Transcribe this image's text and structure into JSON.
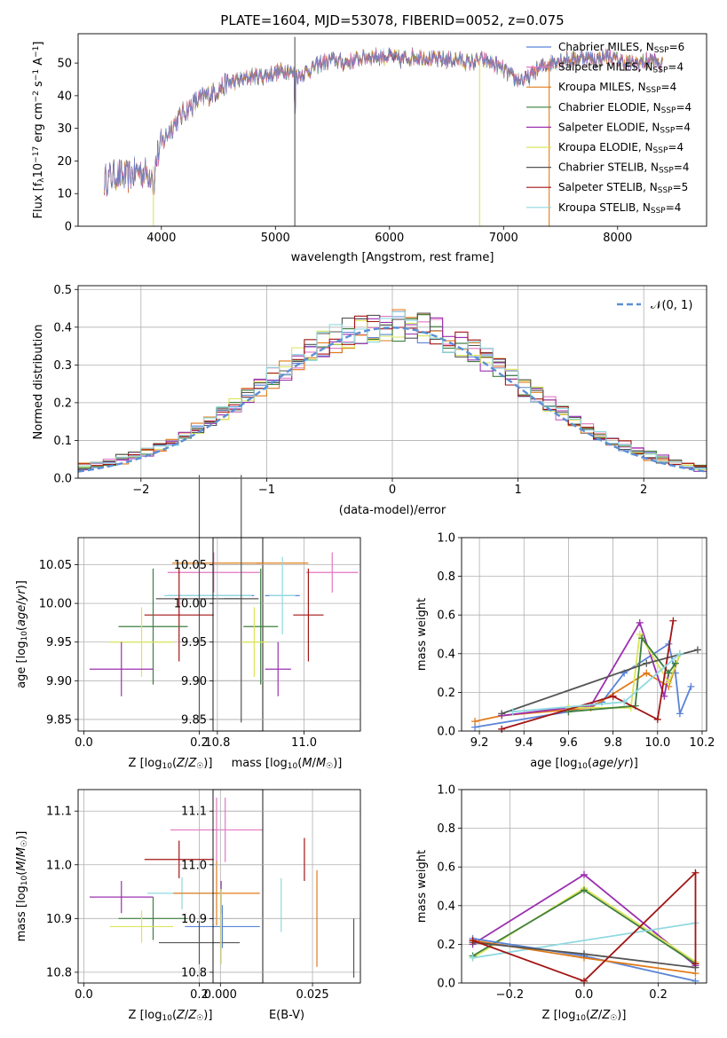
{
  "figure_title": "PLATE=1604, MJD=53078, FIBERID=0052, z=0.075",
  "colors": {
    "Chabrier MILES": "#5b84d6",
    "Salpeter MILES": "#e377c2",
    "Kroupa MILES": "#e07b1a",
    "Chabrier ELODIE": "#3f7f3f",
    "Salpeter ELODIE": "#9b30b0",
    "Kroupa ELODIE": "#dbe55a",
    "Chabrier STELIB": "#555555",
    "Salpeter STELIB": "#a31515",
    "Kroupa STELIB": "#8fd9e0",
    "normal_curve": "#5b8fd6",
    "grid": "#b0b0b0"
  },
  "chart_data": [
    {
      "id": "spectrum",
      "type": "line",
      "title": "PLATE=1604, MJD=53078, FIBERID=0052, z=0.075",
      "xlabel": "wavelength [Angstrom, rest frame]",
      "ylabel_parts": [
        "Flux [f",
        "λ",
        "10",
        "−17",
        " erg cm",
        "−2",
        " s",
        "−1",
        " A",
        "−1",
        "]"
      ],
      "xlim": [
        3270,
        8780
      ],
      "ylim": [
        0,
        59
      ],
      "xticks": [
        4000,
        5000,
        6000,
        7000,
        8000
      ],
      "yticks": [
        0,
        10,
        20,
        30,
        40,
        50
      ],
      "grid": false,
      "legend_position": "top-right",
      "legend": [
        {
          "model": "Chabrier MILES",
          "nssp": "6"
        },
        {
          "model": "Salpeter MILES",
          "nssp": "4"
        },
        {
          "model": "Kroupa MILES",
          "nssp": "4"
        },
        {
          "model": "Chabrier ELODIE",
          "nssp": "4"
        },
        {
          "model": "Salpeter ELODIE",
          "nssp": "4"
        },
        {
          "model": "Kroupa ELODIE",
          "nssp": "4"
        },
        {
          "model": "Chabrier STELIB",
          "nssp": "4"
        },
        {
          "model": "Salpeter STELIB",
          "nssp": "5"
        },
        {
          "model": "Kroupa STELIB",
          "nssp": "4"
        }
      ],
      "legend_label_sub": "SSP",
      "envelope": {
        "x": [
          3500,
          3600,
          3700,
          3800,
          3900,
          3950,
          4000,
          4100,
          4200,
          4300,
          4400,
          4500,
          4600,
          4700,
          4800,
          4900,
          5000,
          5100,
          5200,
          5300,
          5400,
          5500,
          5600,
          5700,
          5800,
          5900,
          6000,
          6100,
          6200,
          6300,
          6400,
          6500,
          6600,
          6700,
          6800,
          6900,
          7000,
          7100,
          7200,
          7300,
          7400,
          7500,
          7600,
          7700,
          7800,
          7900,
          8000,
          8100,
          8200,
          8300,
          8400
        ],
        "y": [
          14,
          16,
          15,
          17,
          16,
          20,
          25,
          31,
          35,
          38,
          40,
          42,
          44,
          45,
          46,
          46,
          47,
          48,
          46,
          48,
          50,
          51,
          50,
          51,
          52,
          52,
          52,
          51,
          52,
          52,
          51,
          51,
          51,
          50,
          51,
          50,
          48,
          45,
          45,
          48,
          50,
          51,
          51,
          52,
          51,
          52,
          51,
          50,
          50,
          51,
          49
        ]
      },
      "spikes": [
        {
          "x": 3930,
          "min": 0,
          "series": "Kroupa ELODIE"
        },
        {
          "x": 5170,
          "min": 0,
          "max": 58,
          "series": "Chabrier STELIB"
        },
        {
          "x": 6790,
          "min": 0,
          "series": "Kroupa ELODIE"
        },
        {
          "x": 7400,
          "min": 0,
          "series": "Kroupa MILES"
        }
      ]
    },
    {
      "id": "residuals",
      "type": "histogram",
      "xlabel": "(data-model)/error",
      "ylabel": "Normed distribution",
      "xlim": [
        -2.5,
        2.5
      ],
      "ylim": [
        0,
        0.51
      ],
      "xticks": [
        -2,
        -1,
        0,
        1,
        2
      ],
      "yticks": [
        0.0,
        0.1,
        0.2,
        0.3,
        0.4,
        0.5
      ],
      "grid": true,
      "legend_position": "top-right",
      "legend": [
        "𝒩(0, 1)"
      ],
      "bin_width": 0.1,
      "normal_curve": {
        "mean": 0,
        "sigma": 1
      }
    },
    {
      "id": "age_vs_Z",
      "type": "scatter",
      "xlabel": "Z [log10(Z/Z☉)]",
      "ylabel": "age [log10(age/yr)]",
      "xlim": [
        -0.01,
        0.31
      ],
      "ylim": [
        9.835,
        10.085
      ],
      "xticks": [
        0.0,
        0.2
      ],
      "yticks": [
        9.85,
        9.9,
        9.95,
        10.0,
        10.05
      ],
      "grid": true,
      "points": [
        {
          "series": "Kroupa MILES",
          "x": 0.23,
          "xerr": 0.077,
          "y": 10.052,
          "yerr": 0
        },
        {
          "series": "Salpeter MILES",
          "x": 0.225,
          "xerr": 0.08,
          "y": 10.04,
          "yerr": 0.026
        },
        {
          "series": "Chabrier MILES",
          "x": 0.22,
          "xerr": 0.075,
          "y": 10.01,
          "yerr": 0
        },
        {
          "series": "Kroupa STELIB",
          "x": 0.215,
          "xerr": 0.076,
          "y": 10.01,
          "yerr": 0
        },
        {
          "series": "Chabrier STELIB",
          "x": 0.2,
          "xerr": 0.075,
          "y": 10.006,
          "yerr": 0.16
        },
        {
          "series": "Salpeter STELIB",
          "x": 0.165,
          "xerr": 0.06,
          "y": 9.985,
          "yerr": 0.06
        },
        {
          "series": "Chabrier ELODIE",
          "x": 0.12,
          "xerr": 0.06,
          "y": 9.97,
          "yerr": 0.075
        },
        {
          "series": "Kroupa ELODIE",
          "x": 0.1,
          "xerr": 0.055,
          "y": 9.95,
          "yerr": 0.045
        },
        {
          "series": "Salpeter ELODIE",
          "x": 0.065,
          "xerr": 0.055,
          "y": 9.915,
          "yerr": 0.035
        }
      ]
    },
    {
      "id": "age_vs_mass",
      "type": "scatter",
      "xlabel": "mass [log10(M/M☉)]",
      "xlim": [
        10.79,
        11.13
      ],
      "ylim": [
        9.835,
        10.085
      ],
      "xticks": [
        10.8,
        11.0
      ],
      "yticks": [
        9.85,
        9.9,
        9.95,
        10.0,
        10.05
      ],
      "grid": true,
      "points": [
        {
          "series": "Kroupa MILES",
          "x": 10.95,
          "xerr": 0.06,
          "y": 10.052,
          "yerr": 0
        },
        {
          "series": "Salpeter MILES",
          "x": 11.065,
          "xerr": 0.06,
          "y": 10.04,
          "yerr": 0.026
        },
        {
          "series": "Chabrier MILES",
          "x": 10.95,
          "xerr": 0.04,
          "y": 10.01,
          "yerr": 0
        },
        {
          "series": "Kroupa STELIB",
          "x": 10.95,
          "xerr": 0.03,
          "y": 10.01,
          "yerr": 0.05
        },
        {
          "series": "Chabrier STELIB",
          "x": 10.855,
          "xerr": 0.04,
          "y": 10.006,
          "yerr": 0.16
        },
        {
          "series": "Salpeter STELIB",
          "x": 11.01,
          "xerr": 0.035,
          "y": 9.985,
          "yerr": 0.06
        },
        {
          "series": "Chabrier ELODIE",
          "x": 10.9,
          "xerr": 0.04,
          "y": 9.97,
          "yerr": 0.075
        },
        {
          "series": "Kroupa ELODIE",
          "x": 10.885,
          "xerr": 0.03,
          "y": 9.95,
          "yerr": 0.045
        },
        {
          "series": "Salpeter ELODIE",
          "x": 10.94,
          "xerr": 0.03,
          "y": 9.915,
          "yerr": 0.035
        }
      ]
    },
    {
      "id": "weight_vs_age",
      "type": "line",
      "xlabel": "age [log10(age/yr)]",
      "ylabel": "mass weight",
      "xlim": [
        9.12,
        10.22
      ],
      "ylim": [
        0,
        1
      ],
      "xticks": [
        9.2,
        9.4,
        9.6,
        9.8,
        10.0,
        10.2
      ],
      "yticks": [
        0.0,
        0.2,
        0.4,
        0.6,
        0.8,
        1.0
      ],
      "grid": true,
      "series": [
        {
          "name": "Chabrier MILES",
          "x": [
            9.18,
            9.6,
            9.75,
            9.85,
            10.05,
            10.08,
            10.1,
            10.15
          ],
          "y": [
            0.02,
            0.1,
            0.15,
            0.3,
            0.45,
            0.3,
            0.09,
            0.23
          ]
        },
        {
          "name": "Kroupa MILES",
          "x": [
            9.18,
            9.3,
            9.7,
            9.95,
            10.05,
            10.1
          ],
          "y": [
            0.05,
            0.08,
            0.12,
            0.3,
            0.23,
            0.4
          ]
        },
        {
          "name": "Salpeter ELODIE",
          "x": [
            9.3,
            9.6,
            9.7,
            9.92,
            10.03,
            10.05
          ],
          "y": [
            0.08,
            0.12,
            0.13,
            0.56,
            0.18,
            0.3
          ]
        },
        {
          "name": "Kroupa ELODIE",
          "x": [
            9.6,
            9.88,
            9.92,
            10.05,
            10.1
          ],
          "y": [
            0.12,
            0.12,
            0.5,
            0.25,
            0.4
          ]
        },
        {
          "name": "Chabrier ELODIE",
          "x": [
            9.6,
            9.9,
            9.93,
            10.05,
            10.08
          ],
          "y": [
            0.1,
            0.13,
            0.48,
            0.3,
            0.35
          ]
        },
        {
          "name": "Chabrier STELIB",
          "x": [
            9.3,
            9.95,
            10.18
          ],
          "y": [
            0.09,
            0.35,
            0.42
          ]
        },
        {
          "name": "Salpeter STELIB",
          "x": [
            9.3,
            9.8,
            10.0,
            10.07
          ],
          "y": [
            0.01,
            0.18,
            0.06,
            0.57
          ]
        },
        {
          "name": "Kroupa STELIB",
          "x": [
            9.35,
            9.85,
            10.1
          ],
          "y": [
            0.1,
            0.15,
            0.4
          ]
        }
      ]
    },
    {
      "id": "mass_vs_Z",
      "type": "scatter",
      "xlabel": "Z [log10(Z/Z☉)]",
      "ylabel": "mass [log10(M/M☉)]",
      "xlim": [
        -0.01,
        0.31
      ],
      "ylim": [
        10.78,
        11.14
      ],
      "xticks": [
        0.0,
        0.2
      ],
      "yticks": [
        10.8,
        10.9,
        11.0,
        11.1
      ],
      "grid": true,
      "points": [
        {
          "series": "Salpeter MILES",
          "x": 0.23,
          "xerr": 0.08,
          "y": 11.065,
          "yerr": 0.06
        },
        {
          "series": "Salpeter STELIB",
          "x": 0.165,
          "xerr": 0.06,
          "y": 11.01,
          "yerr": 0.035
        },
        {
          "series": "Kroupa STELIB",
          "x": 0.17,
          "xerr": 0.06,
          "y": 10.947,
          "yerr": 0.03
        },
        {
          "series": "Kroupa MILES",
          "x": 0.23,
          "xerr": 0.075,
          "y": 10.947,
          "yerr": 0.06
        },
        {
          "series": "Salpeter ELODIE",
          "x": 0.065,
          "xerr": 0.055,
          "y": 10.94,
          "yerr": 0.03
        },
        {
          "series": "Chabrier ELODIE",
          "x": 0.12,
          "xerr": 0.06,
          "y": 10.9,
          "yerr": 0.04
        },
        {
          "series": "Kroupa ELODIE",
          "x": 0.1,
          "xerr": 0.055,
          "y": 10.885,
          "yerr": 0.03
        },
        {
          "series": "Chabrier MILES",
          "x": 0.24,
          "xerr": 0.065,
          "y": 10.885,
          "yerr": 0.04
        },
        {
          "series": "Chabrier STELIB",
          "x": 0.2,
          "xerr": 0.07,
          "y": 10.855,
          "yerr": 0.04
        }
      ]
    },
    {
      "id": "mass_vs_EBV",
      "type": "scatter",
      "xlabel": "E(B-V)",
      "xlim": [
        -0.002,
        0.038
      ],
      "ylim": [
        10.78,
        11.14
      ],
      "xticks": [
        0.0,
        0.025
      ],
      "yticks": [
        10.8,
        10.9,
        11.0,
        11.1
      ],
      "grid": true,
      "points": [
        {
          "series": "Salpeter MILES",
          "x": 0.0013,
          "xerr": 0,
          "y": 11.065,
          "yerr": 0.06
        },
        {
          "series": "Salpeter ELODIE",
          "x": 0.0002,
          "xerr": 0,
          "y": 10.94,
          "yerr": 0.03
        },
        {
          "series": "Kroupa ELODIE",
          "x": 0.0002,
          "xerr": 0,
          "y": 10.885,
          "yerr": 0.07
        },
        {
          "series": "Kroupa STELIB",
          "x": 0.0165,
          "xerr": 0,
          "y": 10.925,
          "yerr": 0.05
        },
        {
          "series": "Salpeter STELIB",
          "x": 0.0228,
          "xerr": 0,
          "y": 11.01,
          "yerr": 0.04
        },
        {
          "series": "Kroupa MILES",
          "x": 0.0262,
          "xerr": 0,
          "y": 10.9,
          "yerr": 0.09
        },
        {
          "series": "Chabrier STELIB",
          "x": 0.0362,
          "xerr": 0,
          "y": 10.845,
          "yerr": 0.055
        }
      ]
    },
    {
      "id": "weight_vs_Z",
      "type": "line",
      "xlabel": "Z [log10(Z/Z☉)]",
      "ylabel": "mass weight",
      "xlim": [
        -0.33,
        0.33
      ],
      "ylim": [
        0,
        1
      ],
      "xticks": [
        -0.2,
        0.0,
        0.2
      ],
      "yticks": [
        0.0,
        0.2,
        0.4,
        0.6,
        0.8,
        1.0
      ],
      "grid": true,
      "series": [
        {
          "name": "Salpeter ELODIE",
          "x": [
            -0.3,
            0.0,
            0.3
          ],
          "y": [
            0.2,
            0.56,
            0.09
          ]
        },
        {
          "name": "Kroupa ELODIE",
          "x": [
            -0.3,
            0.0,
            0.3
          ],
          "y": [
            0.13,
            0.49,
            0.11
          ]
        },
        {
          "name": "Chabrier ELODIE",
          "x": [
            -0.3,
            0.0,
            0.3
          ],
          "y": [
            0.14,
            0.48,
            0.1
          ]
        },
        {
          "name": "Kroupa STELIB",
          "x": [
            -0.3,
            0.3
          ],
          "y": [
            0.13,
            0.31
          ]
        },
        {
          "name": "Chabrier MILES",
          "x": [
            -0.3,
            0.0,
            0.3
          ],
          "y": [
            0.23,
            0.14,
            0.01
          ]
        },
        {
          "name": "Kroupa MILES",
          "x": [
            -0.3,
            0.0,
            0.3
          ],
          "y": [
            0.22,
            0.13,
            0.05
          ]
        },
        {
          "name": "Chabrier STELIB",
          "x": [
            -0.3,
            0.0,
            0.3
          ],
          "y": [
            0.21,
            0.15,
            0.08
          ]
        },
        {
          "name": "Salpeter STELIB",
          "x": [
            -0.3,
            0.0,
            0.3,
            0.3
          ],
          "y": [
            0.22,
            0.01,
            0.57,
            0.1
          ]
        }
      ]
    }
  ]
}
